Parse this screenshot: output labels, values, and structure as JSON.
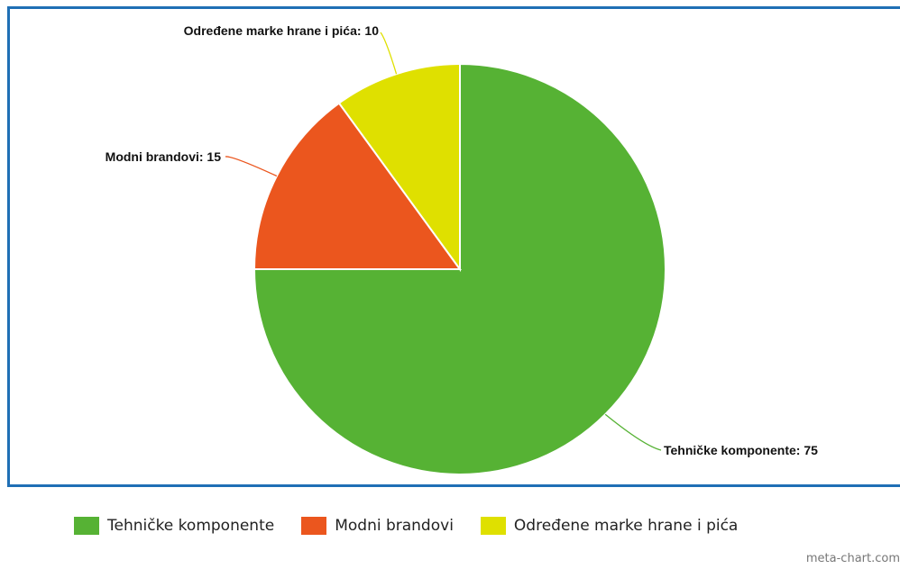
{
  "chart_data": {
    "type": "pie",
    "slices": [
      {
        "label": "Tehničke komponente",
        "value": 75,
        "color": "#56b234",
        "data_label": "Tehničke komponente: 75"
      },
      {
        "label": "Modni brandovi",
        "value": 15,
        "color": "#eb561e",
        "data_label": "Modni brandovi: 15"
      },
      {
        "label": "Određene marke hrane i pića",
        "value": 10,
        "color": "#dfe000",
        "data_label": "Određene marke hrane i pića: 10"
      }
    ],
    "legend_placement": "bottom"
  },
  "legend": {
    "items": [
      {
        "label": "Tehničke komponente",
        "color": "#56b234"
      },
      {
        "label": "Modni brandovi",
        "color": "#eb561e"
      },
      {
        "label": "Određene marke hrane i pića",
        "color": "#dfe000"
      }
    ]
  },
  "watermark": "meta-chart.com",
  "colors": {
    "frame_border": "#1f6fb5"
  }
}
